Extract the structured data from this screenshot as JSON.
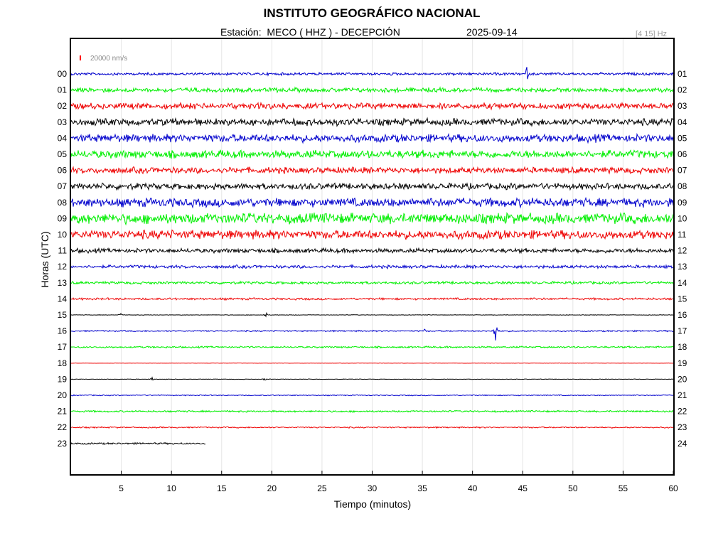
{
  "header": {
    "title": "INSTITUTO GEOGRÁFICO NACIONAL",
    "station": "Estación:  MECO ( HHZ ) - DECEPCIÓN",
    "date": "2025-09-14",
    "band": "[4 15] Hz"
  },
  "chart_data": {
    "type": "line",
    "title": "INSTITUTO GEOGRÁFICO NACIONAL",
    "xlabel": "Tiempo (minutos)",
    "ylabel": "Horas (UTC)",
    "xlim": [
      0,
      60
    ],
    "x_ticks": [
      5,
      10,
      15,
      20,
      25,
      30,
      35,
      40,
      45,
      50,
      55,
      60
    ],
    "grid": true,
    "scale_bar": {
      "label": "20000 nm/s",
      "color": "#ff0000"
    },
    "series_colors": [
      "#0000cc",
      "#00ee00",
      "#ee0000",
      "#000000"
    ],
    "traces": [
      {
        "hour": "00",
        "right_label": "01",
        "amplitude": 1.5,
        "events": [
          {
            "minute": 45.4,
            "amplitude": 11
          }
        ]
      },
      {
        "hour": "01",
        "right_label": "02",
        "amplitude": 2.5,
        "events": []
      },
      {
        "hour": "02",
        "right_label": "03",
        "amplitude": 3.5,
        "events": [
          {
            "minute": 18.2,
            "amplitude": 7
          }
        ]
      },
      {
        "hour": "03",
        "right_label": "04",
        "amplitude": 4,
        "events": [
          {
            "minute": 27.5,
            "amplitude": 7
          }
        ]
      },
      {
        "hour": "04",
        "right_label": "05",
        "amplitude": 4.5,
        "events": []
      },
      {
        "hour": "05",
        "right_label": "06",
        "amplitude": 4.5,
        "events": []
      },
      {
        "hour": "06",
        "right_label": "07",
        "amplitude": 3.5,
        "events": []
      },
      {
        "hour": "07",
        "right_label": "08",
        "amplitude": 3.5,
        "events": []
      },
      {
        "hour": "08",
        "right_label": "09",
        "amplitude": 5,
        "events": []
      },
      {
        "hour": "09",
        "right_label": "10",
        "amplitude": 6,
        "events": [
          {
            "minute": 21.8,
            "amplitude": 10
          }
        ]
      },
      {
        "hour": "10",
        "right_label": "11",
        "amplitude": 5,
        "events": [
          {
            "minute": 1.8,
            "amplitude": 7
          }
        ]
      },
      {
        "hour": "11",
        "right_label": "12",
        "amplitude": 2.5,
        "events": [
          {
            "minute": 53.3,
            "amplitude": 4
          }
        ]
      },
      {
        "hour": "12",
        "right_label": "13",
        "amplitude": 1.8,
        "events": [
          {
            "minute": 45.4,
            "amplitude": 3
          }
        ]
      },
      {
        "hour": "13",
        "right_label": "14",
        "amplitude": 1.5,
        "events": []
      },
      {
        "hour": "14",
        "right_label": "15",
        "amplitude": 1.2,
        "events": []
      },
      {
        "hour": "15",
        "right_label": "16",
        "amplitude": 0.3,
        "events": [
          {
            "minute": 4.9,
            "amplitude": 3
          },
          {
            "minute": 19.4,
            "amplitude": 4
          }
        ]
      },
      {
        "hour": "16",
        "right_label": "17",
        "amplitude": 0.8,
        "events": [
          {
            "minute": 35.2,
            "amplitude": 3
          },
          {
            "minute": 42.3,
            "amplitude": 22
          }
        ]
      },
      {
        "hour": "17",
        "right_label": "18",
        "amplitude": 1.0,
        "events": []
      },
      {
        "hour": "18",
        "right_label": "19",
        "amplitude": 0.2,
        "events": []
      },
      {
        "hour": "19",
        "right_label": "20",
        "amplitude": 0.3,
        "events": [
          {
            "minute": 8.1,
            "amplitude": 4
          },
          {
            "minute": 19.3,
            "amplitude": 2
          }
        ]
      },
      {
        "hour": "20",
        "right_label": "21",
        "amplitude": 0.6,
        "events": []
      },
      {
        "hour": "21",
        "right_label": "22",
        "amplitude": 1.0,
        "events": []
      },
      {
        "hour": "22",
        "right_label": "23",
        "amplitude": 0.8,
        "events": []
      },
      {
        "hour": "23",
        "right_label": "24",
        "amplitude": 1.0,
        "events": [],
        "end_minute": 13.4
      }
    ]
  }
}
